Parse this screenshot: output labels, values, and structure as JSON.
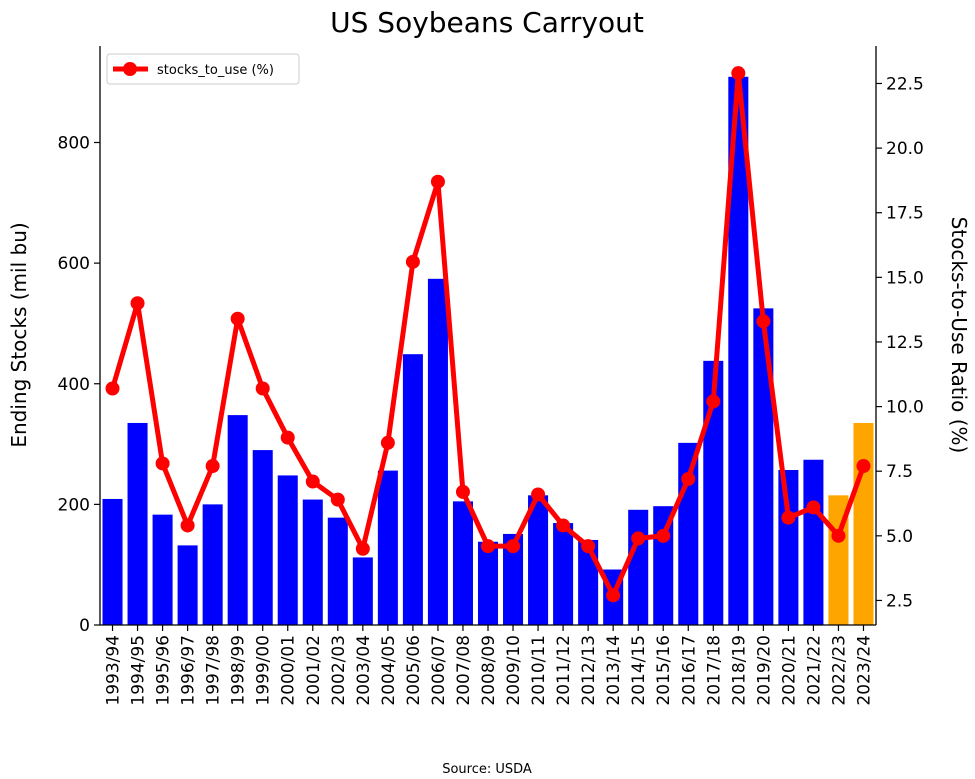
{
  "chart_data": {
    "type": "bar",
    "title": "US Soybeans Carryout",
    "ylabel": "Ending Stocks (mil bu)",
    "y2label": "Stocks-to-Use Ratio (%)",
    "ylim": [
      0,
      960
    ],
    "y2lim": [
      1.55,
      23.95
    ],
    "yticks": [
      0,
      200,
      400,
      600,
      800
    ],
    "y2ticks": [
      2.5,
      5.0,
      7.5,
      10.0,
      12.5,
      15.0,
      17.5,
      20.0,
      22.5
    ],
    "grid": false,
    "legend_position": "top-left",
    "source": "Source: USDA",
    "categories": [
      "1993/94",
      "1994/95",
      "1995/96",
      "1996/97",
      "1997/98",
      "1998/99",
      "1999/00",
      "2000/01",
      "2001/02",
      "2002/03",
      "2003/04",
      "2004/05",
      "2005/06",
      "2006/07",
      "2007/08",
      "2008/09",
      "2009/10",
      "2010/11",
      "2011/12",
      "2012/13",
      "2013/14",
      "2014/15",
      "2015/16",
      "2016/17",
      "2017/18",
      "2018/19",
      "2019/20",
      "2020/21",
      "2021/22",
      "2022/23",
      "2023/24"
    ],
    "series": [
      {
        "kind": "bar",
        "values": [
          209,
          335,
          183,
          132,
          200,
          348,
          290,
          248,
          208,
          178,
          112,
          256,
          449,
          574,
          205,
          138,
          151,
          215,
          169,
          141,
          92,
          191,
          197,
          302,
          438,
          909,
          525,
          257,
          274,
          215,
          335
        ],
        "colors": [
          "#0000ff",
          "#0000ff",
          "#0000ff",
          "#0000ff",
          "#0000ff",
          "#0000ff",
          "#0000ff",
          "#0000ff",
          "#0000ff",
          "#0000ff",
          "#0000ff",
          "#0000ff",
          "#0000ff",
          "#0000ff",
          "#0000ff",
          "#0000ff",
          "#0000ff",
          "#0000ff",
          "#0000ff",
          "#0000ff",
          "#0000ff",
          "#0000ff",
          "#0000ff",
          "#0000ff",
          "#0000ff",
          "#0000ff",
          "#0000ff",
          "#0000ff",
          "#0000ff",
          "#ffa500",
          "#ffa500"
        ]
      },
      {
        "kind": "line",
        "name": "stocks_to_use (%)",
        "axis": "right",
        "color": "#ff0000",
        "values": [
          10.7,
          14.0,
          7.8,
          5.4,
          7.7,
          13.4,
          10.7,
          8.8,
          7.1,
          6.4,
          4.5,
          8.6,
          15.6,
          18.7,
          6.7,
          4.6,
          4.6,
          6.6,
          5.4,
          4.6,
          2.7,
          4.9,
          5.0,
          7.2,
          10.2,
          22.9,
          13.3,
          5.7,
          6.1,
          5.0,
          7.7
        ]
      }
    ]
  }
}
